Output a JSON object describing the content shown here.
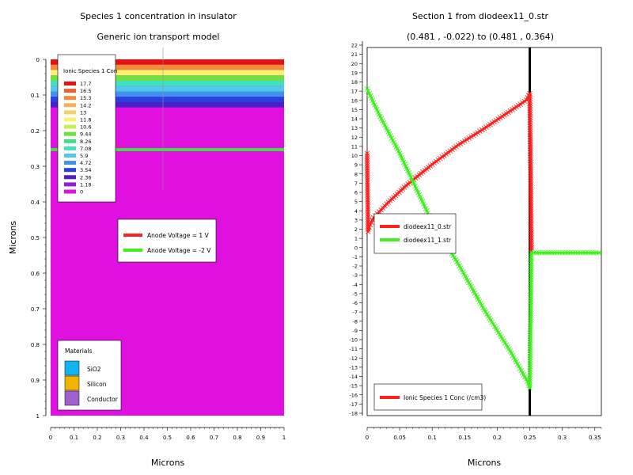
{
  "left_panel": {
    "title": "Species 1 concentration in insulator",
    "subtitle": "Generic ion transport model",
    "xlabel": "Microns",
    "ylabel": "Microns",
    "x_ticks": [
      "0",
      "0.1",
      "0.2",
      "0.3",
      "0.4",
      "0.5",
      "0.6",
      "0.7",
      "0.8",
      "0.9",
      "1"
    ],
    "y_ticks": [
      "0",
      "0.1",
      "0.2",
      "0.3",
      "0.4",
      "0.5",
      "0.6",
      "0.7",
      "0.8",
      "0.9",
      "1"
    ],
    "contour_legend": {
      "title": "Ionic Species 1 Con",
      "levels": [
        "17.7",
        "16.5",
        "15.3",
        "14.2",
        "13",
        "11.8",
        "10.6",
        "9.44",
        "8.26",
        "7.08",
        "5.9",
        "4.72",
        "3.54",
        "2.36",
        "1.18",
        "0"
      ],
      "colors": [
        "#e81010",
        "#f0602a",
        "#f08c3c",
        "#f2b25a",
        "#f6d06a",
        "#fcf070",
        "#c8f050",
        "#70e040",
        "#40e080",
        "#40e0c0",
        "#50c8e8",
        "#4090f0",
        "#2840e0",
        "#4a20c8",
        "#9020d8",
        "#e010e0"
      ]
    },
    "voltage_legend": [
      {
        "label": "Anode Voltage = 1 V",
        "color": "#ff2020"
      },
      {
        "label": "Anode Voltage = -2 V",
        "color": "#40f020"
      }
    ],
    "materials": {
      "title": "Materials",
      "items": [
        {
          "label": "SiO2",
          "color": "#14b4f0"
        },
        {
          "label": "Silicon",
          "color": "#f0b400"
        },
        {
          "label": "Conductor",
          "color": "#a060d0"
        }
      ]
    }
  },
  "right_panel": {
    "title": "Section 1 from diodeex11_0.str",
    "subtitle": "(0.481 , -0.022) to (0.481 , 0.364)",
    "xlabel": "Microns",
    "legend": [
      {
        "label": "diodeex11_0.str",
        "color": "#ff2020"
      },
      {
        "label": "diodeex11_1.str",
        "color": "#40f020"
      }
    ],
    "ylabel_box": "Ionic Species 1 Conc (/cm3)"
  },
  "chart_data": [
    {
      "type": "heatmap",
      "title": "Species 1 concentration in insulator",
      "subtitle": "Generic ion transport model",
      "xlabel": "Microns",
      "ylabel": "Microns",
      "xlim": [
        0,
        1
      ],
      "ylim": [
        1,
        0
      ],
      "bands": [
        {
          "y_from": 0.0,
          "y_to": 0.015,
          "value": 17.7
        },
        {
          "y_from": 0.015,
          "y_to": 0.03,
          "value": 15.3
        },
        {
          "y_from": 0.03,
          "y_to": 0.045,
          "value": 11.8
        },
        {
          "y_from": 0.045,
          "y_to": 0.06,
          "value": 9.44
        },
        {
          "y_from": 0.06,
          "y_to": 0.075,
          "value": 7.08
        },
        {
          "y_from": 0.075,
          "y_to": 0.09,
          "value": 5.9
        },
        {
          "y_from": 0.09,
          "y_to": 0.105,
          "value": 4.72
        },
        {
          "y_from": 0.105,
          "y_to": 0.12,
          "value": 3.54
        },
        {
          "y_from": 0.12,
          "y_to": 0.135,
          "value": 2.36
        },
        {
          "y_from": 0.135,
          "y_to": 1.0,
          "value": 0
        }
      ]
    },
    {
      "type": "line",
      "title": "Section 1 from diodeex11_0.str",
      "subtitle": "(0.481 , -0.022) to (0.481 , 0.364)",
      "xlabel": "Microns",
      "ylabel": "Ionic Species 1 Conc (/cm3)",
      "xlim": [
        0,
        0.36
      ],
      "ylim": [
        -18,
        22
      ],
      "x_ticks": [
        0,
        0.05,
        0.1,
        0.15,
        0.2,
        0.25,
        0.3,
        0.35
      ],
      "y_ticks": [
        -18,
        -17,
        -16,
        -15,
        -14,
        -13,
        -12,
        -11,
        -10,
        -9,
        -8,
        -7,
        -6,
        -5,
        -4,
        -3,
        -2,
        -1,
        0,
        1,
        2,
        3,
        4,
        5,
        6,
        7,
        8,
        9,
        10,
        11,
        12,
        13,
        14,
        15,
        16,
        17,
        18,
        19,
        20,
        21,
        22
      ],
      "interface_x": 0.25,
      "series": [
        {
          "name": "diodeex11_0.str",
          "x": [
            0,
            0.0015,
            0.003,
            0.01,
            0.03,
            0.06,
            0.1,
            0.14,
            0.18,
            0.22,
            0.245,
            0.25,
            0.2515,
            0.2525
          ],
          "y": [
            10.5,
            2.0,
            2.5,
            3.5,
            5.0,
            7.0,
            9.3,
            11.4,
            13.2,
            15.1,
            16.3,
            17.0,
            8.2,
            -0.3
          ]
        },
        {
          "name": "diodeex11_1.str",
          "x": [
            0,
            0.02,
            0.05,
            0.08,
            0.1,
            0.14,
            0.18,
            0.22,
            0.248,
            0.25,
            0.2515,
            0.2525,
            0.28,
            0.32,
            0.36
          ],
          "y": [
            17.5,
            14.5,
            10.5,
            6.0,
            3.0,
            -1.5,
            -6.5,
            -11.0,
            -14.5,
            -15.0,
            -7.0,
            -0.3,
            -0.3,
            -0.3,
            -0.3
          ]
        }
      ]
    }
  ]
}
